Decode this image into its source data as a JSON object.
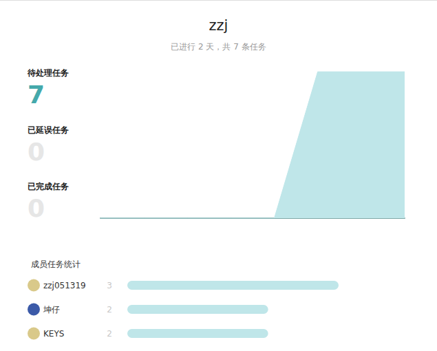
{
  "header": {
    "title": "zzj",
    "subtitle": "已进行 2 天，共 7 条任务"
  },
  "stats": [
    {
      "label": "待处理任务",
      "value": 7
    },
    {
      "label": "已延误任务",
      "value": 0
    },
    {
      "label": "已完成任务",
      "value": 0
    }
  ],
  "chart_data": [
    {
      "type": "area",
      "categories": [
        null,
        null,
        null,
        null,
        null,
        null,
        null,
        null
      ],
      "values": [
        0,
        0,
        0,
        0,
        0,
        7,
        7,
        7
      ],
      "color": "#bfe6e9",
      "ylim": [
        0,
        7
      ],
      "tick_labels": false,
      "grid": false
    },
    {
      "type": "bar",
      "title": "成员任务统计",
      "orientation": "horizontal",
      "categories": [
        "zzj051319",
        "坤仔",
        "KEYS"
      ],
      "values": [
        3,
        2,
        2
      ],
      "color": "#bfe6e9",
      "xlim": [
        0,
        3
      ],
      "data_labels": true,
      "tick_labels": "y",
      "grid": false
    }
  ]
}
